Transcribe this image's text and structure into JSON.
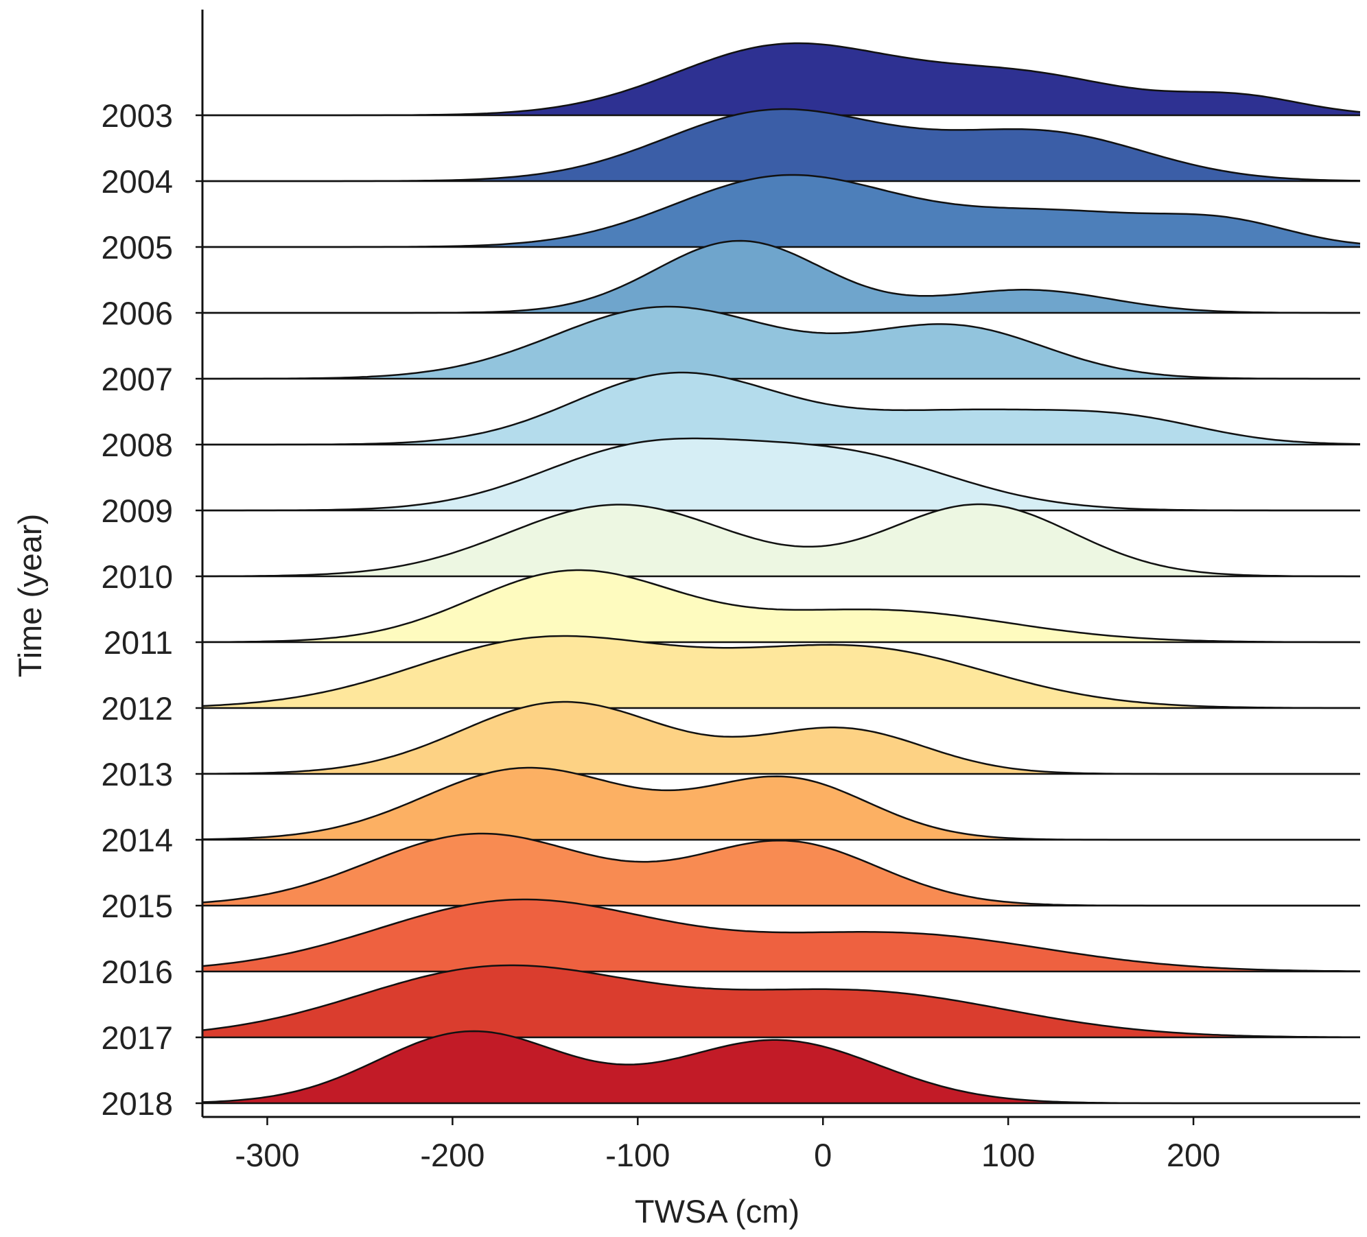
{
  "chart_data": {
    "type": "ridgeline",
    "title": "",
    "xlabel": "TWSA (cm)",
    "ylabel": "Time (year)",
    "xlim": [
      -335,
      290
    ],
    "xticks": [
      -300,
      -200,
      -100,
      0,
      100,
      200
    ],
    "xtick_labels": [
      "-300",
      "-200",
      "-100",
      "0",
      "100",
      "200"
    ],
    "categories": [
      "2003",
      "2004",
      "2005",
      "2006",
      "2007",
      "2008",
      "2009",
      "2010",
      "2011",
      "2012",
      "2013",
      "2014",
      "2015",
      "2016",
      "2017",
      "2018"
    ],
    "series": [
      {
        "name": "2003",
        "color": "#2e3192",
        "peaks": [
          {
            "mu": -20,
            "sigma": 60,
            "amp": 1.0
          },
          {
            "mu": 110,
            "sigma": 55,
            "amp": 0.55
          },
          {
            "mu": 225,
            "sigma": 35,
            "amp": 0.25
          }
        ]
      },
      {
        "name": "2004",
        "color": "#3b5ea7",
        "peaks": [
          {
            "mu": -25,
            "sigma": 60,
            "amp": 0.9
          },
          {
            "mu": 120,
            "sigma": 55,
            "amp": 0.6
          }
        ]
      },
      {
        "name": "2005",
        "color": "#4d7fba",
        "peaks": [
          {
            "mu": -20,
            "sigma": 60,
            "amp": 0.95
          },
          {
            "mu": 130,
            "sigma": 60,
            "amp": 0.45
          },
          {
            "mu": 220,
            "sigma": 35,
            "amp": 0.25
          }
        ]
      },
      {
        "name": "2006",
        "color": "#6fa5cc",
        "peaks": [
          {
            "mu": -45,
            "sigma": 45,
            "amp": 1.1
          },
          {
            "mu": 110,
            "sigma": 45,
            "amp": 0.35
          }
        ]
      },
      {
        "name": "2007",
        "color": "#92c4dd",
        "peaks": [
          {
            "mu": -85,
            "sigma": 60,
            "amp": 0.9
          },
          {
            "mu": 70,
            "sigma": 50,
            "amp": 0.65
          }
        ]
      },
      {
        "name": "2008",
        "color": "#b4dcec",
        "peaks": [
          {
            "mu": -80,
            "sigma": 55,
            "amp": 0.95
          },
          {
            "mu": 80,
            "sigma": 70,
            "amp": 0.45
          },
          {
            "mu": 170,
            "sigma": 40,
            "amp": 0.2
          }
        ]
      },
      {
        "name": "2009",
        "color": "#d6eef5",
        "peaks": [
          {
            "mu": -100,
            "sigma": 55,
            "amp": 0.85
          },
          {
            "mu": 10,
            "sigma": 60,
            "amp": 0.8
          }
        ]
      },
      {
        "name": "2010",
        "color": "#edf7e2",
        "peaks": [
          {
            "mu": -110,
            "sigma": 60,
            "amp": 0.75
          },
          {
            "mu": 85,
            "sigma": 50,
            "amp": 0.75
          }
        ]
      },
      {
        "name": "2011",
        "color": "#fefbbf",
        "peaks": [
          {
            "mu": -135,
            "sigma": 55,
            "amp": 1.1
          },
          {
            "mu": 30,
            "sigma": 70,
            "amp": 0.5
          }
        ]
      },
      {
        "name": "2012",
        "color": "#fee79c",
        "peaks": [
          {
            "mu": -150,
            "sigma": 70,
            "amp": 0.7
          },
          {
            "mu": 20,
            "sigma": 70,
            "amp": 0.6
          }
        ]
      },
      {
        "name": "2013",
        "color": "#fdd284",
        "peaks": [
          {
            "mu": -140,
            "sigma": 55,
            "amp": 1.05
          },
          {
            "mu": 10,
            "sigma": 45,
            "amp": 0.65
          }
        ]
      },
      {
        "name": "2014",
        "color": "#fcb063",
        "peaks": [
          {
            "mu": -160,
            "sigma": 55,
            "amp": 0.95
          },
          {
            "mu": -20,
            "sigma": 45,
            "amp": 0.8
          }
        ]
      },
      {
        "name": "2015",
        "color": "#f88b52",
        "peaks": [
          {
            "mu": -185,
            "sigma": 60,
            "amp": 0.85
          },
          {
            "mu": -20,
            "sigma": 50,
            "amp": 0.75
          }
        ]
      },
      {
        "name": "2016",
        "color": "#ee6140",
        "peaks": [
          {
            "mu": -165,
            "sigma": 75,
            "amp": 0.85
          },
          {
            "mu": 40,
            "sigma": 80,
            "amp": 0.45
          }
        ]
      },
      {
        "name": "2017",
        "color": "#da3d2e",
        "peaks": [
          {
            "mu": -175,
            "sigma": 75,
            "amp": 0.85
          },
          {
            "mu": 20,
            "sigma": 80,
            "amp": 0.55
          }
        ]
      },
      {
        "name": "2018",
        "color": "#c21b27",
        "peaks": [
          {
            "mu": -190,
            "sigma": 50,
            "amp": 0.85
          },
          {
            "mu": -25,
            "sigma": 55,
            "amp": 0.75
          }
        ]
      }
    ]
  }
}
